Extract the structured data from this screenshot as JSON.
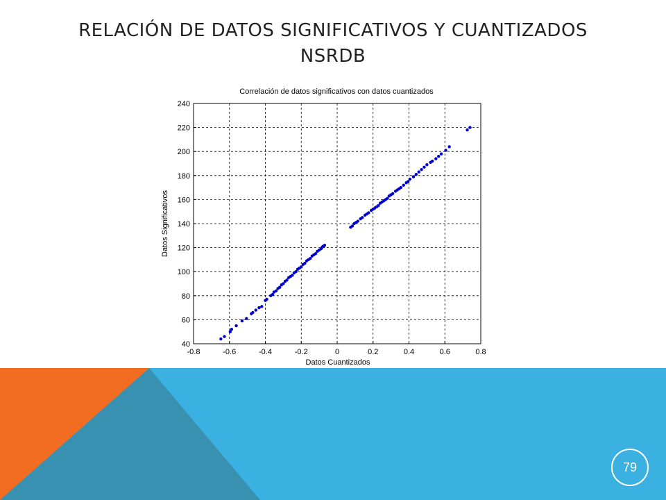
{
  "slide": {
    "title_line1": "RELACIÓN DE DATOS SIGNIFICATIVOS Y CUANTIZADOS",
    "title_line2": "NSRDB",
    "page_number": "79",
    "colors": {
      "band_blue": "#3AB1E0",
      "triangle_orange": "#F26D21",
      "triangle_dark": "#3891B1"
    }
  },
  "chart_data": {
    "type": "scatter",
    "title": "Correlación de datos significativos con datos cuantizados",
    "xlabel": "Datos Cuantizados",
    "ylabel": "Datos Significativos",
    "xlim": [
      -0.8,
      0.8
    ],
    "ylim": [
      40,
      240
    ],
    "xticks": [
      "-0.8",
      "-0.6",
      "-0.4",
      "-0.2",
      "0",
      "0.2",
      "0.4",
      "0.6",
      "0.8"
    ],
    "yticks": [
      "40",
      "60",
      "80",
      "100",
      "120",
      "140",
      "160",
      "180",
      "200",
      "220",
      "240"
    ],
    "grid": "dashed",
    "marker_color": "#0000CC",
    "series": [
      {
        "x": [
          -0.648,
          -0.628,
          -0.596,
          -0.588,
          -0.562,
          -0.53,
          -0.505,
          -0.478,
          -0.47,
          -0.453,
          -0.435,
          -0.42,
          -0.4,
          -0.392,
          -0.37,
          -0.36,
          -0.352,
          -0.34,
          -0.33,
          -0.32,
          -0.31,
          -0.3,
          -0.29,
          -0.28,
          -0.27,
          -0.26,
          -0.25,
          -0.24,
          -0.23,
          -0.22,
          -0.21,
          -0.2,
          -0.19,
          -0.18,
          -0.17,
          -0.16,
          -0.15,
          -0.14,
          -0.13,
          -0.12,
          -0.11,
          -0.1,
          -0.09,
          -0.085,
          -0.08,
          -0.075,
          -0.07
        ],
        "y": [
          44,
          46,
          50,
          52,
          55,
          59,
          61,
          65,
          66,
          68,
          70,
          71,
          76,
          77,
          80,
          81,
          83,
          84,
          86,
          87,
          89,
          90,
          92,
          93,
          95,
          96,
          97,
          99,
          100,
          102,
          103,
          104,
          106,
          107,
          109,
          110,
          111,
          113,
          114,
          115,
          117,
          118,
          119,
          120,
          121,
          121,
          122
        ]
      },
      {
        "x": [
          0.075,
          0.085,
          0.095,
          0.105,
          0.115,
          0.13,
          0.14,
          0.155,
          0.165,
          0.175,
          0.19,
          0.2,
          0.21,
          0.22,
          0.23,
          0.24,
          0.25,
          0.26,
          0.27,
          0.28,
          0.29,
          0.3,
          0.31,
          0.325,
          0.335,
          0.345,
          0.355,
          0.37,
          0.385,
          0.395,
          0.405,
          0.425,
          0.44,
          0.455,
          0.47,
          0.485,
          0.5,
          0.52,
          0.53,
          0.55,
          0.565,
          0.58,
          0.605,
          0.625,
          0.725,
          0.74
        ],
        "y": [
          137,
          138,
          140,
          141,
          142,
          144,
          145,
          147,
          148,
          149,
          151,
          152,
          153,
          154,
          155,
          157,
          158,
          159,
          160,
          161,
          163,
          164,
          165,
          167,
          168,
          169,
          170,
          172,
          174,
          175,
          177,
          179,
          181,
          183,
          185,
          187,
          189,
          191,
          192,
          194,
          196,
          198,
          201,
          204,
          218,
          220
        ]
      }
    ]
  }
}
